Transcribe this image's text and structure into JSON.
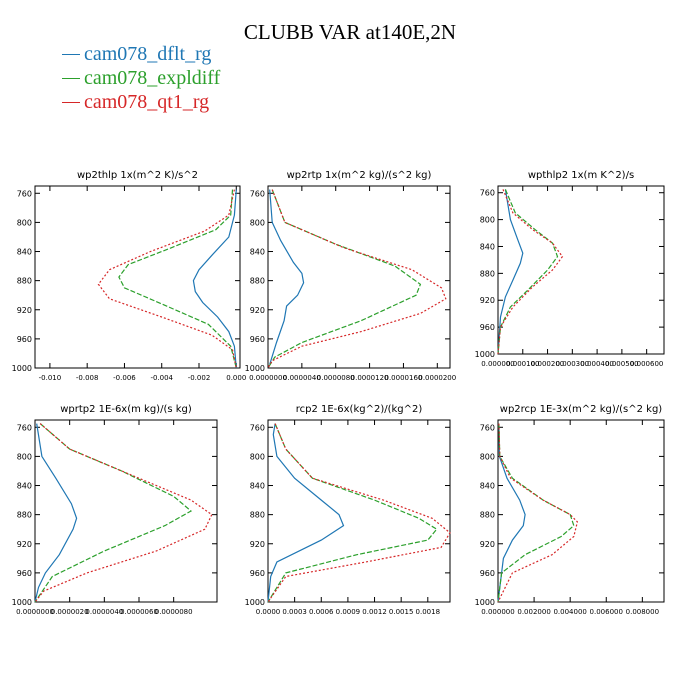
{
  "title": "CLUBB VAR at140E,2N",
  "legend": [
    {
      "name": "cam078_dflt_rg",
      "color": "#1f77b4",
      "dash": ""
    },
    {
      "name": "cam078_expldiff",
      "color": "#2ca02c",
      "dash": "5,2"
    },
    {
      "name": "cam078_qt1_rg",
      "color": "#d62728",
      "dash": "2,2"
    }
  ],
  "chart_data": [
    {
      "type": "line",
      "title": "wp2thlp   1x(m^2 K)/s^2",
      "ylim": [
        1000,
        750
      ],
      "yticks": [
        760,
        800,
        840,
        880,
        920,
        960,
        1000
      ],
      "xlim": [
        -0.0108,
        0.0002
      ],
      "xticks": [
        -0.01,
        -0.008,
        -0.006,
        -0.004,
        -0.002,
        0.0
      ],
      "xtick_labels": [
        "-0.010",
        "-0.008",
        "-0.006",
        "-0.004",
        "-0.002",
        "0.000"
      ],
      "series": [
        {
          "name": "cam078_dflt_rg",
          "x": [
            0.0,
            -0.0001,
            -0.0004,
            -0.0013,
            -0.002,
            -0.0023,
            -0.0022,
            -0.0018,
            -0.001,
            -0.0004,
            -0.0001,
            0.0
          ],
          "y": [
            755,
            790,
            820,
            845,
            865,
            880,
            895,
            910,
            930,
            950,
            970,
            1000
          ]
        },
        {
          "name": "cam078_expldiff",
          "x": [
            -0.0002,
            -0.0003,
            -0.0011,
            -0.0035,
            -0.0058,
            -0.0063,
            -0.006,
            -0.004,
            -0.0015,
            -0.0003,
            0.0
          ],
          "y": [
            755,
            790,
            810,
            835,
            858,
            875,
            890,
            912,
            940,
            970,
            1000
          ]
        },
        {
          "name": "cam078_qt1_rg",
          "x": [
            -0.0001,
            -0.0004,
            -0.0017,
            -0.0046,
            -0.0068,
            -0.0074,
            -0.0068,
            -0.004,
            -0.0013,
            -0.0002,
            0.0
          ],
          "y": [
            755,
            790,
            812,
            840,
            865,
            885,
            905,
            930,
            955,
            975,
            1000
          ]
        }
      ]
    },
    {
      "type": "line",
      "title": "wp2rtp   1x(m^2 kg)/(s^2 kg)",
      "ylim": [
        1000,
        750
      ],
      "yticks": [
        760,
        800,
        840,
        880,
        920,
        960,
        1000
      ],
      "xlim": [
        0,
        2.15e-05
      ],
      "xticks": [
        0,
        4e-06,
        8e-06,
        1.2e-05,
        1.6e-05,
        2e-05
      ],
      "xtick_labels": [
        "0.0000000",
        "0.0000040",
        "0.0000080",
        "0.0000120",
        "0.0000160",
        "0.0000200"
      ],
      "series": [
        {
          "name": "cam078_dflt_rg",
          "x": [
            2e-07,
            5e-07,
            1.5e-06,
            3e-06,
            4e-06,
            4.2e-06,
            3.5e-06,
            2.2e-06,
            1.9e-06,
            1e-06,
            2e-07
          ],
          "y": [
            755,
            800,
            825,
            855,
            870,
            883,
            900,
            915,
            935,
            965,
            995
          ]
        },
        {
          "name": "cam078_expldiff",
          "x": [
            5e-07,
            2e-06,
            8e-06,
            1.5e-05,
            1.8e-05,
            1.75e-05,
            1.1e-05,
            4e-06,
            8e-07,
            0.0
          ],
          "y": [
            755,
            800,
            830,
            860,
            885,
            900,
            935,
            965,
            985,
            1000
          ]
        },
        {
          "name": "cam078_qt1_rg",
          "x": [
            5e-07,
            2e-06,
            9e-06,
            1.7e-05,
            2.05e-05,
            2.1e-05,
            1.8e-05,
            1.1e-05,
            4e-06,
            5e-07,
            0.0
          ],
          "y": [
            755,
            800,
            835,
            865,
            890,
            905,
            925,
            950,
            970,
            990,
            1000
          ]
        }
      ]
    },
    {
      "type": "line",
      "title": "wpthlp2   1x(m K^2)/s",
      "ylim": [
        1000,
        750
      ],
      "yticks": [
        760,
        800,
        840,
        880,
        920,
        960,
        1000
      ],
      "xlim": [
        0,
        0.00067
      ],
      "xticks": [
        0,
        0.0001,
        0.0002,
        0.0003,
        0.0004,
        0.0005,
        0.0006
      ],
      "xtick_labels": [
        "0.000000",
        "0.000100",
        "0.000200",
        "0.000300",
        "0.000400",
        "0.000500",
        "0.000600"
      ],
      "series": [
        {
          "name": "cam078_dflt_rg",
          "x": [
            3e-05,
            5e-05,
            8e-05,
            0.0001,
            9e-05,
            6e-05,
            3e-05,
            1e-05,
            0.0
          ],
          "y": [
            755,
            800,
            830,
            850,
            865,
            890,
            915,
            945,
            1000
          ]
        },
        {
          "name": "cam078_expldiff",
          "x": [
            3e-05,
            7e-05,
            0.00015,
            0.00022,
            0.00024,
            0.0002,
            0.00012,
            5e-05,
            1e-05,
            0.0
          ],
          "y": [
            755,
            790,
            815,
            835,
            855,
            875,
            905,
            930,
            960,
            1000
          ]
        },
        {
          "name": "cam078_qt1_rg",
          "x": [
            2e-05,
            6e-05,
            0.00014,
            0.00022,
            0.00026,
            0.00022,
            0.00014,
            6e-05,
            1e-05,
            0.0
          ],
          "y": [
            755,
            790,
            815,
            835,
            855,
            875,
            900,
            930,
            960,
            1000
          ]
        }
      ]
    },
    {
      "type": "line",
      "title": "wprtp2   1E-6x(m kg)/(s kg)",
      "ylim": [
        1000,
        750
      ],
      "yticks": [
        760,
        800,
        840,
        880,
        920,
        960,
        1000
      ],
      "xlim": [
        0,
        1.05e-05
      ],
      "xticks": [
        0,
        2e-06,
        4e-06,
        6e-06,
        8e-06
      ],
      "xtick_labels": [
        "0.0000000",
        "0.0000020",
        "0.0000040",
        "0.0000060",
        "0.0000080"
      ],
      "series": [
        {
          "name": "cam078_dflt_rg",
          "x": [
            1e-07,
            4e-07,
            1.2e-06,
            2.1e-06,
            2.4e-06,
            2.2e-06,
            1.4e-06,
            6e-07,
            2e-07,
            0.0
          ],
          "y": [
            755,
            800,
            830,
            865,
            885,
            900,
            935,
            960,
            980,
            1000
          ]
        },
        {
          "name": "cam078_expldiff",
          "x": [
            3e-07,
            2e-06,
            5e-06,
            8e-06,
            9e-06,
            7.5e-06,
            4e-06,
            1e-06,
            0.0
          ],
          "y": [
            755,
            790,
            820,
            855,
            875,
            895,
            930,
            965,
            1000
          ]
        },
        {
          "name": "cam078_qt1_rg",
          "x": [
            3e-07,
            2e-06,
            5.5e-06,
            9e-06,
            1.02e-05,
            9.8e-06,
            7e-06,
            3e-06,
            5e-07,
            0.0
          ],
          "y": [
            755,
            790,
            825,
            860,
            880,
            900,
            930,
            960,
            985,
            1000
          ]
        }
      ]
    },
    {
      "type": "line",
      "title": "rcp2   1E-6x(kg^2)/(kg^2)",
      "ylim": [
        1000,
        750
      ],
      "yticks": [
        760,
        800,
        840,
        880,
        920,
        960,
        1000
      ],
      "xlim": [
        0,
        0.00205
      ],
      "xticks": [
        0,
        0.0003,
        0.0006,
        0.0009,
        0.0012,
        0.0015,
        0.0018
      ],
      "xtick_labels": [
        "0.0000",
        "0.0003",
        "0.0006",
        "0.0009",
        "0.0012",
        "0.0015",
        "0.0018"
      ],
      "series": [
        {
          "name": "cam078_dflt_rg",
          "x": [
            8e-05,
            6e-05,
            0.0001,
            0.0003,
            0.0006,
            0.0008,
            0.00085,
            0.0006,
            0.0001,
            3e-05,
            0.0
          ],
          "y": [
            755,
            770,
            800,
            830,
            860,
            880,
            895,
            915,
            945,
            965,
            1000
          ]
        },
        {
          "name": "cam078_expldiff",
          "x": [
            8e-05,
            0.0002,
            0.0005,
            0.0012,
            0.0017,
            0.0019,
            0.0018,
            0.001,
            0.0002,
            0.0
          ],
          "y": [
            755,
            790,
            830,
            860,
            885,
            900,
            915,
            935,
            960,
            1000
          ]
        },
        {
          "name": "cam078_qt1_rg",
          "x": [
            8e-05,
            0.0002,
            0.0005,
            0.0013,
            0.00185,
            0.00205,
            0.00195,
            0.0011,
            0.0002,
            0.0
          ],
          "y": [
            755,
            790,
            830,
            860,
            885,
            905,
            925,
            945,
            965,
            1000
          ]
        }
      ]
    },
    {
      "type": "line",
      "title": "wp2rcp   1E-3x(m^2 kg)/(s^2 kg)",
      "ylim": [
        1000,
        750
      ],
      "yticks": [
        760,
        800,
        840,
        880,
        920,
        960,
        1000
      ],
      "xlim": [
        0,
        0.0092
      ],
      "xticks": [
        0,
        0.002,
        0.004,
        0.006,
        0.008
      ],
      "xtick_labels": [
        "0.000000",
        "0.002000",
        "0.004000",
        "0.006000",
        "0.008000"
      ],
      "series": [
        {
          "name": "cam078_dflt_rg",
          "x": [
            5e-05,
            8e-05,
            0.0005,
            0.0012,
            0.0015,
            0.0014,
            0.0008,
            0.0003,
            0.0
          ],
          "y": [
            755,
            800,
            830,
            860,
            880,
            895,
            915,
            940,
            1000
          ]
        },
        {
          "name": "cam078_expldiff",
          "x": [
            5e-05,
            0.0001,
            0.0008,
            0.0025,
            0.004,
            0.0042,
            0.0035,
            0.0015,
            0.0002,
            0.0
          ],
          "y": [
            755,
            800,
            830,
            860,
            880,
            895,
            910,
            935,
            960,
            1000
          ]
        },
        {
          "name": "cam078_qt1_rg",
          "x": [
            5e-05,
            0.0001,
            0.0007,
            0.0025,
            0.004,
            0.0044,
            0.0042,
            0.003,
            0.0008,
            0.0
          ],
          "y": [
            755,
            800,
            830,
            860,
            880,
            890,
            910,
            935,
            960,
            1000
          ]
        }
      ]
    }
  ]
}
